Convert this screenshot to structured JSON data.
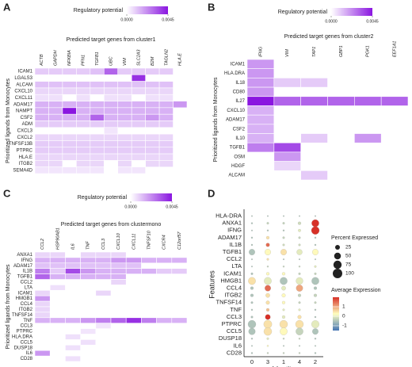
{
  "chart_data": [
    {
      "type": "heatmap",
      "panel_label": "A",
      "title": "Predicted target genes from cluster1",
      "y_label": "Prioritized ligands from Monocytes",
      "legend_title": "Regulatory potential",
      "clim": [
        0,
        0.0045
      ],
      "legend_ticks": [
        {
          "value": 0,
          "label": "0.0000"
        },
        {
          "value": 0.0045,
          "label": "0.0045"
        }
      ],
      "colors": [
        "#ffffff",
        "#8a16e0"
      ],
      "x": [
        "ACTB",
        "GAPDH",
        "NFKBIA",
        "PFN1",
        "TGFB1",
        "UBC",
        "VIM",
        "SLC2A3",
        "B2M",
        "TAGLN2",
        "HLA.E"
      ],
      "y": [
        "ICAM1",
        "LGALS3",
        "ALCAM",
        "CXCL10",
        "CXCL11",
        "ADAM17",
        "NAMPT",
        "CSF2",
        "ADM",
        "CXCL3",
        "CXCL2",
        "TNFSF13B",
        "PTPRC",
        "HLA.E",
        "ITGB2",
        "SEMA4D"
      ],
      "values": [
        [
          0.001,
          0.001,
          0.001,
          0.001,
          0.0012,
          0.003,
          0.001,
          0.001,
          0.001,
          0.001,
          null
        ],
        [
          null,
          null,
          null,
          null,
          null,
          null,
          null,
          0.004,
          null,
          null,
          null
        ],
        [
          0.0012,
          0.0012,
          0.0012,
          0.0012,
          0.0012,
          0.0012,
          0.0012,
          0.0012,
          0.0012,
          0.0012,
          null
        ],
        [
          0.0008,
          0.0008,
          0.0008,
          0.0008,
          0.0008,
          0.0008,
          0.0008,
          0.0008,
          0.0008,
          0.0008,
          null
        ],
        [
          0.0006,
          0.0006,
          null,
          0.0006,
          null,
          0.0006,
          0.0006,
          null,
          0.0006,
          0.0006,
          null
        ],
        [
          0.0015,
          0.0015,
          0.0015,
          0.0015,
          0.0015,
          0.0015,
          0.0015,
          0.0015,
          0.0015,
          0.0015,
          0.002
        ],
        [
          0.0015,
          0.0015,
          0.0045,
          0.0015,
          0.0015,
          0.0015,
          0.0015,
          0.0015,
          0.0015,
          0.0015,
          null
        ],
        [
          0.0015,
          0.0015,
          0.0015,
          0.0015,
          0.003,
          0.0015,
          0.0015,
          0.0015,
          0.002,
          0.0015,
          null
        ],
        [
          0.001,
          0.001,
          0.001,
          0.001,
          0.001,
          0.001,
          0.001,
          0.001,
          0.001,
          0.001,
          null
        ],
        [
          null,
          null,
          null,
          null,
          null,
          0.0005,
          null,
          null,
          null,
          null,
          null
        ],
        [
          0.0008,
          0.0008,
          0.0008,
          0.0008,
          0.0008,
          0.0008,
          0.0008,
          0.0008,
          0.0008,
          0.0008,
          null
        ],
        [
          0.001,
          0.001,
          0.001,
          0.001,
          0.001,
          0.001,
          0.001,
          0.001,
          0.001,
          0.001,
          null
        ],
        [
          0.001,
          0.001,
          0.001,
          0.001,
          0.001,
          0.001,
          0.001,
          0.001,
          0.001,
          0.001,
          null
        ],
        [
          0.0008,
          0.0008,
          0.0008,
          0.0008,
          0.0008,
          0.0008,
          0.0008,
          0.0008,
          0.0008,
          0.0008,
          null
        ],
        [
          0.0008,
          0.0008,
          null,
          0.0008,
          0.0008,
          null,
          0.0008,
          null,
          0.0008,
          0.0008,
          null
        ],
        [
          0.0005,
          0.0005,
          0.0005,
          0.0005,
          0.0005,
          null,
          0.0005,
          0.0005,
          null,
          null,
          null
        ]
      ]
    },
    {
      "type": "heatmap",
      "panel_label": "B",
      "title": "Predicted target genes from cluster2",
      "y_label": "Prioritized ligands from Monocytes",
      "legend_title": "Regulatory potential",
      "clim": [
        0,
        0.0045
      ],
      "legend_ticks": [
        {
          "value": 0,
          "label": "0.0000"
        },
        {
          "value": 0.0045,
          "label": "0.0045"
        }
      ],
      "colors": [
        "#ffffff",
        "#8a16e0"
      ],
      "x": [
        "IFNG",
        "VIM",
        "TAP1",
        "GBP1",
        "PGK1",
        "EEF1A1"
      ],
      "y": [
        "ICAM1",
        "HLA.DRA",
        "IL18",
        "CD80",
        "IL27",
        "CXCL10",
        "ADAM17",
        "CSF2",
        "IL10",
        "TGFB1",
        "OSM",
        "HDGF",
        "ALCAM"
      ],
      "values": [
        [
          0.002,
          null,
          null,
          null,
          null,
          null
        ],
        [
          0.002,
          null,
          null,
          null,
          null,
          null
        ],
        [
          0.002,
          0.001,
          0.001,
          null,
          null,
          null
        ],
        [
          0.002,
          null,
          null,
          null,
          null,
          null
        ],
        [
          0.0045,
          0.003,
          0.003,
          0.003,
          0.003,
          0.003
        ],
        [
          0.0015,
          null,
          null,
          null,
          null,
          null
        ],
        [
          0.0015,
          null,
          null,
          null,
          null,
          null
        ],
        [
          0.0015,
          null,
          null,
          null,
          null,
          null
        ],
        [
          0.0015,
          null,
          0.001,
          null,
          0.002,
          null
        ],
        [
          0.0025,
          0.0035,
          null,
          null,
          null,
          null
        ],
        [
          null,
          0.002,
          null,
          null,
          null,
          null
        ],
        [
          null,
          0.0008,
          null,
          null,
          null,
          null
        ],
        [
          null,
          null,
          0.001,
          null,
          null,
          null
        ]
      ]
    },
    {
      "type": "heatmap",
      "panel_label": "C",
      "title": "Predicted target genes from clustermono",
      "y_label": "Prioritized ligands from Monocytes",
      "legend_title": "Regulatory potential",
      "clim": [
        0,
        0.0045
      ],
      "legend_ticks": [
        {
          "value": 0,
          "label": "0.0000"
        },
        {
          "value": 0.0045,
          "label": "0.0045"
        }
      ],
      "colors": [
        "#ffffff",
        "#8a16e0"
      ],
      "x": [
        "CCL2",
        "HSP90AB1",
        "IL6",
        "TNF",
        "CCL3",
        "CXCL10",
        "CXCL11",
        "TNFSF10",
        "CXCR4",
        "C12orf57"
      ],
      "y": [
        "ANXA1",
        "IFNG",
        "ADAM17",
        "IL1B",
        "TGFB1",
        "CCL2",
        "LTA",
        "ICAM1",
        "HMGB1",
        "CCL4",
        "ITGB2",
        "TNFSF14",
        "TNF",
        "CCL3",
        "PTPRC",
        "HLA.DRA",
        "CCL5",
        "DUSP18",
        "IL6",
        "CD28"
      ],
      "values": [
        [
          0.0008,
          0.0008,
          null,
          0.0008,
          0.0008,
          0.0008,
          null,
          null,
          null,
          null
        ],
        [
          0.0015,
          0.0015,
          0.0015,
          0.0015,
          0.0015,
          0.002,
          0.002,
          0.0015,
          0.0015,
          0.0015
        ],
        [
          0.0012,
          0.0012,
          0.0012,
          0.0012,
          0.0012,
          0.0012,
          0.0012,
          null,
          null,
          null
        ],
        [
          0.0025,
          0.001,
          0.0035,
          0.002,
          0.0015,
          0.0015,
          0.0015,
          0.0015,
          0.001,
          0.001
        ],
        [
          0.003,
          0.0015,
          0.0015,
          0.0015,
          0.0015,
          0.0015,
          null,
          null,
          null,
          null
        ],
        [
          null,
          null,
          null,
          null,
          null,
          0.0008,
          null,
          null,
          null,
          null
        ],
        [
          null,
          0.0006,
          null,
          null,
          null,
          null,
          null,
          null,
          null,
          null
        ],
        [
          0.0008,
          null,
          null,
          null,
          0.0008,
          null,
          null,
          null,
          null,
          null
        ],
        [
          0.002,
          null,
          null,
          null,
          null,
          null,
          null,
          null,
          null,
          null
        ],
        [
          0.0008,
          null,
          null,
          null,
          null,
          null,
          null,
          null,
          null,
          null
        ],
        [
          0.0008,
          null,
          null,
          null,
          null,
          null,
          null,
          null,
          null,
          null
        ],
        [
          0.0008,
          null,
          null,
          null,
          null,
          null,
          null,
          null,
          null,
          null
        ],
        [
          0.0015,
          0.0015,
          0.0015,
          0.002,
          0.0025,
          0.003,
          0.004,
          0.0025,
          0.0015,
          0.0015
        ],
        [
          null,
          null,
          null,
          null,
          0.0005,
          null,
          null,
          null,
          null,
          null
        ],
        [
          null,
          null,
          null,
          0.0005,
          null,
          null,
          null,
          null,
          null,
          null
        ],
        [
          null,
          null,
          0.0006,
          null,
          null,
          null,
          null,
          null,
          null,
          null
        ],
        [
          null,
          null,
          null,
          0.0006,
          null,
          null,
          null,
          null,
          null,
          null
        ],
        [
          null,
          null,
          0.0006,
          null,
          null,
          null,
          null,
          null,
          null,
          null
        ],
        [
          0.002,
          null,
          null,
          null,
          null,
          null,
          null,
          null,
          null,
          null
        ],
        [
          null,
          null,
          0.0006,
          null,
          null,
          null,
          null,
          null,
          null,
          null
        ]
      ]
    },
    {
      "type": "dotplot",
      "panel_label": "D",
      "x_label": "Identity",
      "y_label": "Features",
      "categories": [
        "0",
        "3",
        "1",
        "4",
        "2"
      ],
      "features": [
        "HLA-DRA",
        "ANXA1",
        "IFNG",
        "ADAM17",
        "IL1B",
        "TGFB1",
        "CCL2",
        "LTA",
        "ICAM1",
        "HMGB1",
        "CCL4",
        "ITGB2",
        "TNFSF14",
        "TNF",
        "CCL3",
        "PTPRC",
        "CCL5",
        "DUSP18",
        "IL6",
        "CD28"
      ],
      "size_title": "Percent Expressed",
      "size_lim": [
        0,
        100
      ],
      "size_ticks": [
        25,
        50,
        75,
        100
      ],
      "color_title": "Average Expression",
      "clim": [
        -1.5,
        2
      ],
      "color_ticks": [
        -1,
        0,
        1
      ],
      "colors": [
        "#4575b4",
        "#ffffbf",
        "#d73027"
      ],
      "pct": [
        [
          2,
          2,
          2,
          2,
          2
        ],
        [
          3,
          5,
          5,
          10,
          60
        ],
        [
          2,
          3,
          3,
          8,
          70
        ],
        [
          3,
          10,
          5,
          5,
          3
        ],
        [
          3,
          15,
          5,
          5,
          3
        ],
        [
          40,
          40,
          40,
          35,
          40
        ],
        [
          2,
          5,
          2,
          2,
          2
        ],
        [
          2,
          3,
          3,
          3,
          5
        ],
        [
          5,
          10,
          10,
          5,
          5
        ],
        [
          60,
          60,
          60,
          55,
          60
        ],
        [
          10,
          40,
          20,
          50,
          10
        ],
        [
          10,
          20,
          15,
          10,
          10
        ],
        [
          5,
          15,
          10,
          5,
          5
        ],
        [
          3,
          10,
          5,
          5,
          3
        ],
        [
          5,
          30,
          10,
          15,
          3
        ],
        [
          70,
          75,
          70,
          70,
          65
        ],
        [
          50,
          70,
          60,
          60,
          40
        ],
        [
          3,
          5,
          3,
          3,
          3
        ],
        [
          2,
          3,
          2,
          2,
          2
        ],
        [
          3,
          3,
          3,
          3,
          3
        ]
      ],
      "avg": [
        [
          -0.5,
          -0.5,
          -0.5,
          -0.5,
          -0.5
        ],
        [
          -0.5,
          -0.3,
          -0.3,
          -0.2,
          2
        ],
        [
          -0.5,
          -0.5,
          -0.5,
          0,
          2
        ],
        [
          -0.5,
          0.5,
          -0.3,
          -0.3,
          -0.5
        ],
        [
          -0.5,
          1.5,
          -0.2,
          -0.2,
          -0.5
        ],
        [
          -0.5,
          0.3,
          0.5,
          0,
          0.3
        ],
        [
          -0.5,
          0.5,
          -0.5,
          -0.5,
          -0.5
        ],
        [
          -0.5,
          -0.3,
          -0.3,
          -0.3,
          0
        ],
        [
          -0.5,
          0.3,
          0.3,
          -0.3,
          -0.3
        ],
        [
          0.5,
          0,
          -0.5,
          0,
          -0.5
        ],
        [
          -0.5,
          1.5,
          0,
          1,
          -0.5
        ],
        [
          -0.5,
          0.5,
          0.3,
          -0.3,
          -0.3
        ],
        [
          -0.5,
          0.5,
          0.3,
          -0.3,
          -0.3
        ],
        [
          -0.5,
          0.8,
          0,
          0,
          -0.5
        ],
        [
          -0.5,
          2,
          0,
          0.5,
          -0.5
        ],
        [
          -0.5,
          0.5,
          0.5,
          0.5,
          0
        ],
        [
          -0.5,
          0.5,
          0.3,
          -0.3,
          -0.5
        ],
        [
          -0.5,
          0,
          -0.3,
          -0.3,
          -0.5
        ],
        [
          -0.5,
          0.3,
          -0.5,
          -0.5,
          -0.5
        ],
        [
          -0.5,
          -0.3,
          -0.3,
          -0.3,
          -0.5
        ]
      ]
    }
  ]
}
